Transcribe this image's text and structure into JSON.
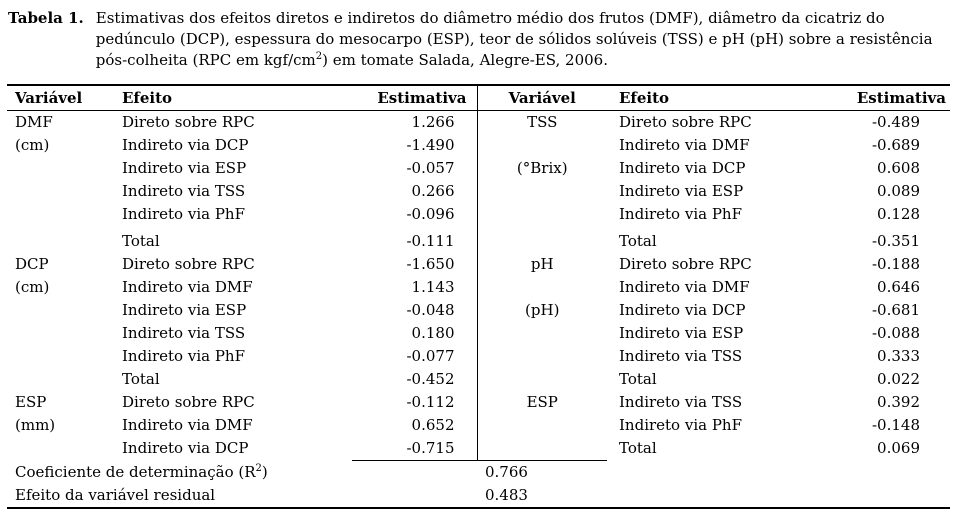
{
  "caption": {
    "label": "Tabela 1.",
    "text_before_sup": "Estimativas dos efeitos diretos e indiretos do diâmetro médio dos frutos (DMF), diâmetro da cicatriz do pedúnculo (DCP), espessura do mesocarpo (ESP), teor de sólidos solúveis (TSS) e pH (pH) sobre a resistência pós-colheita (RPC em kgf/cm",
    "sup": "2",
    "text_after_sup": ") em tomate Salada, Alegre-ES, 2006."
  },
  "table": {
    "headers": [
      "Variável",
      "Efeito",
      "Estimativa",
      "Variável",
      "Efeito",
      "Estimativa"
    ],
    "rows": [
      [
        "DMF",
        "Direto sobre RPC",
        "1.266",
        "TSS",
        "Direto sobre RPC",
        "-0.489"
      ],
      [
        "(cm)",
        "Indireto via DCP",
        "-1.490",
        "",
        "Indireto via DMF",
        "-0.689"
      ],
      [
        "",
        "Indireto via ESP",
        "-0.057",
        "(°Brix)",
        "Indireto via DCP",
        "0.608"
      ],
      [
        "",
        "Indireto via TSS",
        "0.266",
        "",
        "Indireto via ESP",
        "0.089"
      ],
      [
        "",
        "Indireto via PhF",
        "-0.096",
        "",
        "Indireto via PhF",
        "0.128"
      ],
      [
        "",
        "Total",
        "-0.111",
        "",
        "Total",
        "-0.351"
      ],
      [
        "DCP",
        "Direto sobre RPC",
        "-1.650",
        "pH",
        "Direto sobre RPC",
        "-0.188"
      ],
      [
        "(cm)",
        "Indireto via DMF",
        "1.143",
        "",
        "Indireto via DMF",
        "0.646"
      ],
      [
        "",
        "Indireto via ESP",
        "-0.048",
        "(pH)",
        "Indireto via DCP",
        "-0.681"
      ],
      [
        "",
        "Indireto via TSS",
        "0.180",
        "",
        "Indireto via ESP",
        "-0.088"
      ],
      [
        "",
        "Indireto via PhF",
        "-0.077",
        "",
        "Indireto via TSS",
        "0.333"
      ],
      [
        "",
        "Total",
        "-0.452",
        "",
        "Total",
        "0.022"
      ],
      [
        "ESP",
        "Direto sobre RPC",
        "-0.112",
        "ESP",
        "Indireto via TSS",
        "0.392"
      ],
      [
        "(mm)",
        "Indireto via DMF",
        "0.652",
        "",
        "Indireto via PhF",
        "-0.148"
      ],
      [
        "",
        "Indireto via DCP",
        "-0.715",
        "",
        "Total",
        "0.069"
      ]
    ],
    "footer": {
      "r2": {
        "label_before_sup": "Coeficiente de determinação (R",
        "sup": "2",
        "label_after_sup": ")",
        "value": "0.766"
      },
      "residual": {
        "label": "Efeito da variável residual",
        "value": "0.483"
      }
    }
  },
  "colors": {
    "text": "#000000",
    "background": "#ffffff",
    "rule": "#000000"
  }
}
